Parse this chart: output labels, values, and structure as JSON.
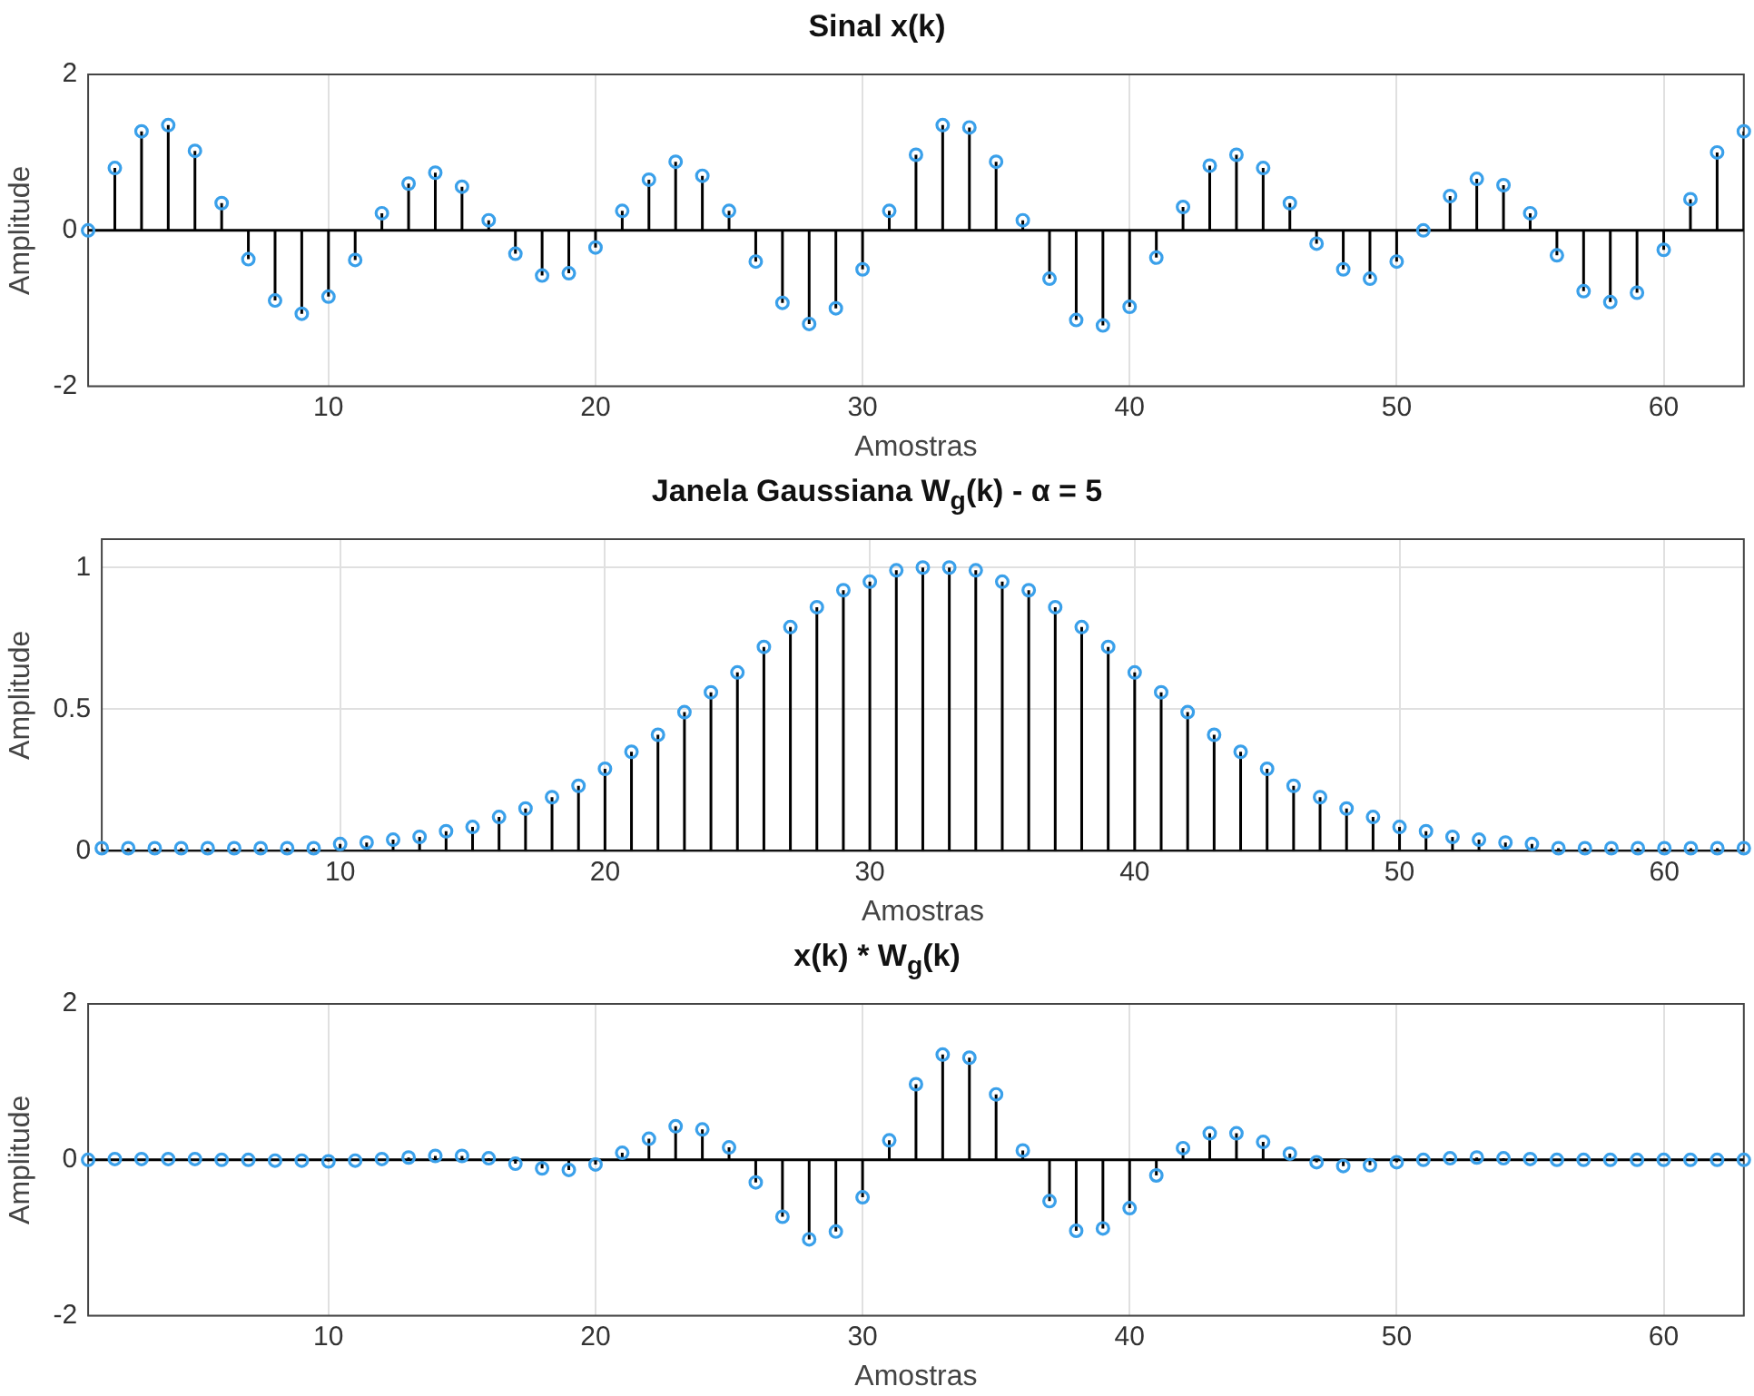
{
  "chart_data": [
    {
      "type": "lollipop",
      "title": "Sinal x(k)",
      "xlabel": "Amostras",
      "ylabel": "Amplitude",
      "xlim": [
        1,
        63
      ],
      "xticks": [
        10,
        20,
        30,
        40,
        50,
        60
      ],
      "ylim": [
        -2,
        2
      ],
      "yticks": [
        -2,
        0,
        2
      ],
      "grid": true,
      "marker": "circle",
      "x": [
        1,
        2,
        3,
        4,
        5,
        6,
        7,
        8,
        9,
        10,
        11,
        12,
        13,
        14,
        15,
        16,
        17,
        18,
        19,
        20,
        21,
        22,
        23,
        24,
        25,
        26,
        27,
        28,
        29,
        30,
        31,
        32,
        33,
        34,
        35,
        36,
        37,
        38,
        39,
        40,
        41,
        42,
        43,
        44,
        45,
        46,
        47,
        48,
        49,
        50,
        51,
        52,
        53,
        54,
        55,
        56,
        57,
        58,
        59,
        60,
        61,
        62,
        63
      ],
      "series": [
        {
          "color": "#3aa0ea",
          "values": [
            0,
            0.8,
            1.27,
            1.35,
            1.02,
            0.35,
            -0.37,
            -0.9,
            -1.07,
            -0.85,
            -0.38,
            0.22,
            0.6,
            0.74,
            0.56,
            0.13,
            -0.3,
            -0.58,
            -0.55,
            -0.22,
            0.25,
            0.65,
            0.88,
            0.7,
            0.25,
            -0.4,
            -0.93,
            -1.2,
            -1.0,
            -0.5,
            0.25,
            0.97,
            1.35,
            1.32,
            0.88,
            0.13,
            -0.62,
            -1.15,
            -1.22,
            -0.98,
            -0.35,
            0.3,
            0.83,
            0.97,
            0.8,
            0.35,
            -0.17,
            -0.5,
            -0.62,
            -0.4,
            0,
            0.44,
            0.66,
            0.58,
            0.22,
            -0.32,
            -0.78,
            -0.92,
            -0.8,
            -0.25,
            0.4,
            1.0,
            1.27
          ]
        }
      ]
    },
    {
      "type": "lollipop",
      "title": "Janela Gaussiana W$_{g}$(k) - α = 5",
      "xlabel": "Amostras",
      "ylabel": "Amplitude",
      "xlim": [
        1,
        63
      ],
      "xticks": [
        10,
        20,
        30,
        40,
        50,
        60
      ],
      "ylim": [
        0,
        1.1
      ],
      "yticks": [
        0,
        0.5,
        1
      ],
      "grid": true,
      "marker": "circle",
      "x": [
        1,
        2,
        3,
        4,
        5,
        6,
        7,
        8,
        9,
        10,
        11,
        12,
        13,
        14,
        15,
        16,
        17,
        18,
        19,
        20,
        21,
        22,
        23,
        24,
        25,
        26,
        27,
        28,
        29,
        30,
        31,
        32,
        33,
        34,
        35,
        36,
        37,
        38,
        39,
        40,
        41,
        42,
        43,
        44,
        45,
        46,
        47,
        48,
        49,
        50,
        51,
        52,
        53,
        54,
        55,
        56,
        57,
        58,
        59,
        60,
        61,
        62,
        63
      ],
      "series": [
        {
          "color": "#3aa0ea",
          "values": [
            0.01,
            0.01,
            0.01,
            0.01,
            0.01,
            0.01,
            0.01,
            0.01,
            0.01,
            0.025,
            0.03,
            0.04,
            0.05,
            0.07,
            0.085,
            0.12,
            0.15,
            0.19,
            0.23,
            0.29,
            0.35,
            0.41,
            0.49,
            0.56,
            0.63,
            0.72,
            0.79,
            0.86,
            0.92,
            0.95,
            0.99,
            1.0,
            1.0,
            0.99,
            0.95,
            0.92,
            0.86,
            0.79,
            0.72,
            0.63,
            0.56,
            0.49,
            0.41,
            0.35,
            0.29,
            0.23,
            0.19,
            0.15,
            0.12,
            0.085,
            0.07,
            0.05,
            0.04,
            0.03,
            0.025,
            0.01,
            0.01,
            0.01,
            0.01,
            0.01,
            0.01,
            0.01,
            0.01
          ]
        }
      ]
    },
    {
      "type": "lollipop",
      "title": "x(k) * W$_{g}$(k)",
      "xlabel": "Amostras",
      "ylabel": "Amplitude",
      "xlim": [
        1,
        63
      ],
      "xticks": [
        10,
        20,
        30,
        40,
        50,
        60
      ],
      "ylim": [
        -2,
        2
      ],
      "yticks": [
        -2,
        0,
        2
      ],
      "grid": true,
      "marker": "circle",
      "x": [
        1,
        2,
        3,
        4,
        5,
        6,
        7,
        8,
        9,
        10,
        11,
        12,
        13,
        14,
        15,
        16,
        17,
        18,
        19,
        20,
        21,
        22,
        23,
        24,
        25,
        26,
        27,
        28,
        29,
        30,
        31,
        32,
        33,
        34,
        35,
        36,
        37,
        38,
        39,
        40,
        41,
        42,
        43,
        44,
        45,
        46,
        47,
        48,
        49,
        50,
        51,
        52,
        53,
        54,
        55,
        56,
        57,
        58,
        59,
        60,
        61,
        62,
        63
      ],
      "series": [
        {
          "color": "#3aa0ea",
          "values": [
            0,
            0.01,
            0.01,
            0.01,
            0.01,
            0,
            0,
            -0.01,
            -0.01,
            -0.02,
            -0.01,
            0.01,
            0.03,
            0.05,
            0.05,
            0.02,
            -0.05,
            -0.11,
            -0.13,
            -0.06,
            0.09,
            0.27,
            0.43,
            0.39,
            0.16,
            -0.29,
            -0.73,
            -1.02,
            -0.92,
            -0.48,
            0.25,
            0.97,
            1.35,
            1.31,
            0.84,
            0.12,
            -0.53,
            -0.91,
            -0.88,
            -0.62,
            -0.2,
            0.15,
            0.34,
            0.34,
            0.23,
            0.08,
            -0.03,
            -0.08,
            -0.07,
            -0.03,
            0,
            0.02,
            0.03,
            0.02,
            0.01,
            0,
            0,
            0,
            0,
            0,
            0,
            0,
            0
          ]
        }
      ]
    }
  ]
}
